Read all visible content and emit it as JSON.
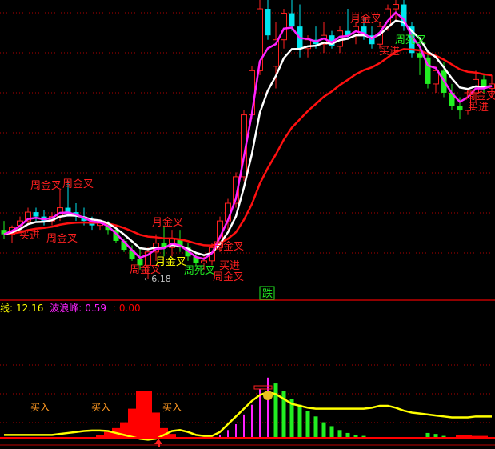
{
  "chart_data": [
    {
      "type": "candlestick",
      "panel": "price",
      "ylim": [
        5.8,
        12.5
      ],
      "grid": true,
      "colors": {
        "up": "#ff2020",
        "down_cyan": "#00e5ee",
        "down_green": "#22ee22",
        "fast_line": "#ff22ff",
        "mid_line": "#ffffff",
        "slow_line": "#ff1010",
        "grid": "#b00000"
      },
      "candles": [
        [
          7.3,
          7.5,
          7.1,
          7.2,
          "g"
        ],
        [
          7.2,
          7.4,
          7.0,
          7.35,
          "r"
        ],
        [
          7.4,
          7.6,
          7.3,
          7.5,
          "r"
        ],
        [
          7.5,
          7.8,
          7.4,
          7.7,
          "r"
        ],
        [
          7.7,
          7.8,
          7.5,
          7.6,
          "c"
        ],
        [
          7.6,
          7.75,
          7.4,
          7.5,
          "c"
        ],
        [
          7.5,
          7.7,
          7.4,
          7.6,
          "r"
        ],
        [
          7.6,
          8.2,
          7.5,
          7.8,
          "r"
        ],
        [
          7.8,
          8.4,
          7.6,
          7.7,
          "c"
        ],
        [
          7.7,
          7.9,
          7.5,
          7.6,
          "c"
        ],
        [
          7.6,
          7.8,
          7.4,
          7.5,
          "c"
        ],
        [
          7.5,
          7.6,
          7.3,
          7.4,
          "c"
        ],
        [
          7.4,
          7.5,
          7.3,
          7.45,
          "r"
        ],
        [
          7.45,
          7.5,
          7.2,
          7.3,
          "g"
        ],
        [
          7.3,
          7.4,
          7.0,
          7.05,
          "g"
        ],
        [
          7.05,
          7.1,
          6.8,
          6.85,
          "g"
        ],
        [
          6.85,
          6.95,
          6.6,
          6.65,
          "g"
        ],
        [
          6.65,
          6.9,
          6.4,
          6.5,
          "g"
        ],
        [
          6.5,
          6.9,
          6.18,
          6.8,
          "r"
        ],
        [
          6.8,
          7.2,
          6.6,
          7.0,
          "r"
        ],
        [
          7.0,
          7.4,
          6.7,
          6.9,
          "g"
        ],
        [
          6.9,
          7.3,
          6.7,
          7.1,
          "r"
        ],
        [
          7.1,
          7.3,
          6.8,
          6.9,
          "g"
        ],
        [
          6.9,
          7.0,
          6.6,
          6.7,
          "g"
        ],
        [
          6.7,
          6.8,
          6.5,
          6.55,
          "g"
        ],
        [
          6.55,
          6.7,
          6.4,
          6.6,
          "r"
        ],
        [
          6.6,
          7.0,
          6.5,
          6.9,
          "r"
        ],
        [
          6.9,
          7.6,
          6.8,
          7.5,
          "r"
        ],
        [
          7.5,
          8.0,
          7.3,
          7.9,
          "r"
        ],
        [
          7.9,
          8.6,
          7.8,
          8.5,
          "r"
        ],
        [
          8.5,
          10.0,
          8.4,
          9.9,
          "r"
        ],
        [
          9.9,
          11.0,
          9.8,
          10.9,
          "r"
        ],
        [
          10.9,
          12.5,
          10.8,
          12.3,
          "r"
        ],
        [
          12.3,
          12.5,
          11.6,
          11.7,
          "c"
        ],
        [
          11.0,
          12.0,
          10.5,
          11.6,
          "r"
        ],
        [
          11.6,
          12.3,
          11.4,
          12.2,
          "r"
        ],
        [
          12.2,
          12.5,
          11.8,
          11.9,
          "c"
        ],
        [
          11.9,
          12.4,
          11.2,
          11.4,
          "c"
        ],
        [
          11.4,
          11.7,
          11.2,
          11.6,
          "r"
        ],
        [
          11.6,
          11.9,
          11.4,
          11.5,
          "c"
        ],
        [
          11.5,
          12.0,
          11.3,
          11.7,
          "r"
        ],
        [
          11.7,
          11.8,
          11.4,
          11.45,
          "c"
        ],
        [
          11.45,
          11.9,
          11.3,
          11.8,
          "r"
        ],
        [
          11.8,
          12.3,
          11.6,
          11.7,
          "c"
        ],
        [
          11.7,
          12.0,
          11.5,
          11.9,
          "r"
        ],
        [
          11.9,
          12.1,
          11.6,
          11.7,
          "c"
        ],
        [
          11.7,
          11.9,
          11.4,
          11.5,
          "c"
        ],
        [
          11.5,
          12.0,
          11.4,
          11.9,
          "r"
        ],
        [
          11.9,
          12.4,
          11.8,
          12.3,
          "r"
        ],
        [
          12.3,
          12.5,
          12.0,
          12.4,
          "r"
        ],
        [
          12.4,
          12.5,
          11.8,
          11.9,
          "c"
        ],
        [
          11.9,
          12.0,
          11.2,
          11.3,
          "c"
        ],
        [
          11.3,
          11.6,
          10.8,
          11.2,
          "g"
        ],
        [
          11.2,
          11.3,
          10.5,
          10.6,
          "g"
        ],
        [
          10.6,
          11.0,
          10.4,
          10.9,
          "r"
        ],
        [
          10.9,
          11.1,
          10.3,
          10.4,
          "g"
        ],
        [
          10.4,
          10.6,
          10.0,
          10.1,
          "g"
        ],
        [
          10.1,
          10.3,
          9.8,
          10.0,
          "g"
        ],
        [
          10.0,
          10.5,
          9.9,
          10.4,
          "r"
        ],
        [
          10.4,
          10.9,
          10.2,
          10.7,
          "r"
        ],
        [
          10.7,
          10.8,
          10.4,
          10.5,
          "g"
        ],
        [
          10.5,
          10.8,
          10.3,
          10.6,
          "r"
        ]
      ],
      "annotations": [
        {
          "text": "周金叉",
          "color": "#ff2020"
        },
        {
          "text": "周金叉",
          "color": "#ff2020"
        },
        {
          "text": "买进",
          "color": "#ff2020"
        },
        {
          "text": "周金叉",
          "color": "#ff2020"
        },
        {
          "text": "月金叉",
          "color": "#ff2020"
        },
        {
          "text": "周金叉",
          "color": "#ff2020"
        },
        {
          "text": "月金叉",
          "color": "#ffff00"
        },
        {
          "text": "周死叉",
          "color": "#22ee22"
        },
        {
          "text": "周金叉",
          "color": "#ff2020"
        },
        {
          "text": "买进",
          "color": "#ff2020"
        },
        {
          "text": "周金叉",
          "color": "#ff2020"
        },
        {
          "text": "月金叉",
          "color": "#ff2020"
        },
        {
          "text": "买进",
          "color": "#ff2020"
        },
        {
          "text": "周死叉",
          "color": "#22ee22"
        },
        {
          "text": "周金叉",
          "color": "#ff2020"
        },
        {
          "text": "买进",
          "color": "#ff2020"
        },
        {
          "text": "←6.18",
          "color": "#c0c0c0"
        },
        {
          "text": "跌",
          "color": "#22ee22"
        }
      ]
    },
    {
      "type": "bar+line",
      "panel": "indicator",
      "ylim": [
        -5,
        100
      ],
      "grid": true,
      "line_color": "#ffff00",
      "line": [
        3,
        3,
        3,
        3,
        3,
        3,
        3,
        4,
        5,
        6,
        7,
        7.5,
        7.5,
        7,
        5,
        3,
        1,
        -1,
        -2,
        -1,
        3,
        7,
        8,
        6,
        3,
        2,
        2,
        6,
        14,
        22,
        30,
        38,
        44,
        47,
        45,
        40,
        35,
        33,
        31,
        30,
        30,
        30,
        30,
        30,
        30,
        30,
        31,
        33,
        33,
        31,
        28,
        26,
        25,
        24,
        23,
        22,
        21,
        21,
        21,
        22,
        22,
        22
      ],
      "bars": [
        {
          "i": 12,
          "v": 3,
          "color": "#ff0000"
        },
        {
          "i": 13,
          "v": 6,
          "color": "#ff0000"
        },
        {
          "i": 14,
          "v": 10,
          "color": "#ff0000"
        },
        {
          "i": 15,
          "v": 16,
          "color": "#ff0000"
        },
        {
          "i": 16,
          "v": 30,
          "color": "#ff0000"
        },
        {
          "i": 17,
          "v": 48,
          "color": "#ff0000"
        },
        {
          "i": 18,
          "v": 48,
          "color": "#ff0000"
        },
        {
          "i": 19,
          "v": 26,
          "color": "#ff0000"
        },
        {
          "i": 20,
          "v": 10,
          "color": "#ff0000"
        },
        {
          "i": 21,
          "v": 4,
          "color": "#ff0000"
        },
        {
          "i": 27,
          "v": 3,
          "color": "#ff22ff"
        },
        {
          "i": 28,
          "v": 8,
          "color": "#ff22ff"
        },
        {
          "i": 29,
          "v": 14,
          "color": "#ff22ff"
        },
        {
          "i": 30,
          "v": 24,
          "color": "#ff22ff"
        },
        {
          "i": 31,
          "v": 34,
          "color": "#ff22ff"
        },
        {
          "i": 32,
          "v": 50,
          "color": "#ff22ff"
        },
        {
          "i": 33,
          "v": 62,
          "color": "#ff22ff"
        },
        {
          "i": 34,
          "v": 56,
          "color": "#22ee22"
        },
        {
          "i": 35,
          "v": 48,
          "color": "#22ee22"
        },
        {
          "i": 36,
          "v": 40,
          "color": "#22ee22"
        },
        {
          "i": 37,
          "v": 34,
          "color": "#22ee22"
        },
        {
          "i": 38,
          "v": 28,
          "color": "#22ee22"
        },
        {
          "i": 39,
          "v": 22,
          "color": "#22ee22"
        },
        {
          "i": 40,
          "v": 16,
          "color": "#22ee22"
        },
        {
          "i": 41,
          "v": 12,
          "color": "#22ee22"
        },
        {
          "i": 42,
          "v": 8,
          "color": "#22ee22"
        },
        {
          "i": 43,
          "v": 5,
          "color": "#22ee22"
        },
        {
          "i": 44,
          "v": 3,
          "color": "#22ee22"
        },
        {
          "i": 45,
          "v": 2,
          "color": "#22ee22"
        },
        {
          "i": 53,
          "v": 5,
          "color": "#22ee22"
        },
        {
          "i": 54,
          "v": 4,
          "color": "#22ee22"
        },
        {
          "i": 55,
          "v": 2,
          "color": "#22ee22"
        },
        {
          "i": 57,
          "v": 3,
          "color": "#ff0000"
        },
        {
          "i": 58,
          "v": 3,
          "color": "#ff0000"
        },
        {
          "i": 59,
          "v": 2,
          "color": "#ff0000"
        },
        {
          "i": 60,
          "v": 2,
          "color": "#ff0000"
        }
      ],
      "signals": [
        "买入",
        "买入",
        "买入"
      ],
      "legend": [
        {
          "label": "线:",
          "value": "12.16",
          "color": "#ffff00"
        },
        {
          "label": "波浪峰:",
          "value": "0.59",
          "color": "#ff22ff"
        },
        {
          "label": ":",
          "value": "0.00",
          "color": "#ff0000"
        }
      ]
    }
  ]
}
